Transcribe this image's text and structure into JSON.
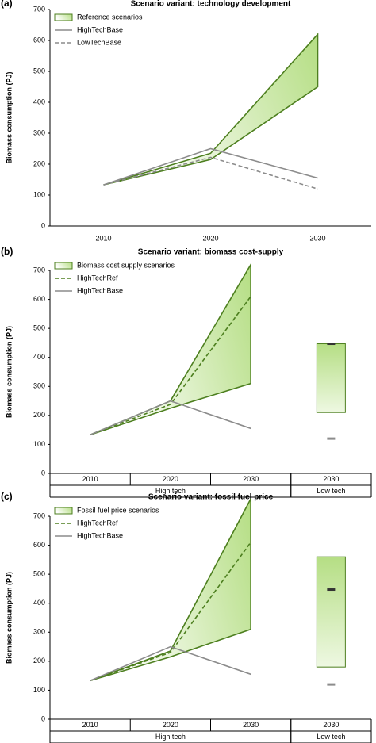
{
  "chart_data": [
    {
      "type": "band_line",
      "panel": "(a)",
      "title": "Scenario variant: technology development",
      "ylabel": "Biomass consumption (PJ)",
      "categories": [
        "2010",
        "2020",
        "2030"
      ],
      "ylim": [
        0,
        700
      ],
      "yticks": [
        0,
        100,
        200,
        300,
        400,
        500,
        600,
        700
      ],
      "series": [
        {
          "name": "Reference scenarios",
          "kind": "band",
          "color": "#4d7f1f",
          "fill": "#b5de84",
          "lower": [
            133,
            215,
            450
          ],
          "upper": [
            133,
            235,
            620
          ]
        },
        {
          "name": "HighTechBase",
          "kind": "line",
          "color": "#8c8c8c",
          "dashed": false,
          "values": [
            133,
            250,
            155
          ]
        },
        {
          "name": "LowTechBase",
          "kind": "line",
          "color": "#8c8c8c",
          "dashed": true,
          "values": [
            133,
            222,
            120
          ]
        }
      ]
    },
    {
      "type": "band_line",
      "panel": "(b)",
      "title": "Scenario variant: biomass cost-supply",
      "ylabel": "Biomass consumption (PJ)",
      "categories": [
        "2010",
        "2020",
        "2030",
        "2030"
      ],
      "groups": [
        "High tech",
        "High tech",
        "High tech",
        "Low tech"
      ],
      "ylim": [
        0,
        700
      ],
      "yticks": [
        0,
        100,
        200,
        300,
        400,
        500,
        600,
        700
      ],
      "series": [
        {
          "name": "Biomass cost supply scenarios",
          "kind": "band",
          "color": "#4d7f1f",
          "fill": "#b5de84",
          "lower": [
            133,
            225,
            310,
            210
          ],
          "upper": [
            133,
            250,
            720,
            447
          ]
        },
        {
          "name": "HighTechRef",
          "kind": "line",
          "color": "#4d7f1f",
          "dashed": true,
          "values": [
            133,
            238,
            610,
            447
          ]
        },
        {
          "name": "HighTechBase",
          "kind": "line",
          "color": "#8c8c8c",
          "dashed": false,
          "values": [
            133,
            250,
            155,
            120
          ]
        }
      ]
    },
    {
      "type": "band_line",
      "panel": "(c)",
      "title": "Scenario variant: fossil fuel price",
      "ylabel": "Biomass consumption (PJ)",
      "categories": [
        "2010",
        "2020",
        "2030",
        "2030"
      ],
      "groups": [
        "High tech",
        "High tech",
        "High tech",
        "Low tech"
      ],
      "ylim": [
        0,
        700
      ],
      "yticks": [
        0,
        100,
        200,
        300,
        400,
        500,
        600,
        700
      ],
      "series": [
        {
          "name": "Fossil fuel price scenarios",
          "kind": "band",
          "color": "#4d7f1f",
          "fill": "#b5de84",
          "lower": [
            133,
            215,
            310,
            180
          ],
          "upper": [
            133,
            235,
            760,
            560
          ]
        },
        {
          "name": "HighTechRef",
          "kind": "line",
          "color": "#4d7f1f",
          "dashed": true,
          "values": [
            133,
            230,
            610,
            447
          ]
        },
        {
          "name": "HighTechBase",
          "kind": "line",
          "color": "#8c8c8c",
          "dashed": false,
          "values": [
            133,
            250,
            155,
            120
          ]
        }
      ]
    }
  ]
}
